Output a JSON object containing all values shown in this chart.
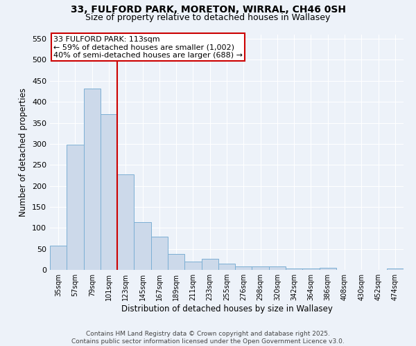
{
  "title1": "33, FULFORD PARK, MORETON, WIRRAL, CH46 0SH",
  "title2": "Size of property relative to detached houses in Wallasey",
  "xlabel": "Distribution of detached houses by size in Wallasey",
  "ylabel": "Number of detached properties",
  "categories": [
    "35sqm",
    "57sqm",
    "79sqm",
    "101sqm",
    "123sqm",
    "145sqm",
    "167sqm",
    "189sqm",
    "211sqm",
    "233sqm",
    "255sqm",
    "276sqm",
    "298sqm",
    "320sqm",
    "342sqm",
    "364sqm",
    "386sqm",
    "408sqm",
    "430sqm",
    "452sqm",
    "474sqm"
  ],
  "values": [
    57,
    298,
    432,
    370,
    228,
    113,
    79,
    38,
    19,
    26,
    15,
    8,
    9,
    8,
    4,
    4,
    5,
    0,
    0,
    0,
    3
  ],
  "bar_color": "#ccd9ea",
  "bar_edge_color": "#7bafd4",
  "red_line_index": 3.5,
  "annotation_line1": "33 FULFORD PARK: 113sqm",
  "annotation_line2": "← 59% of detached houses are smaller (1,002)",
  "annotation_line3": "40% of semi-detached houses are larger (688) →",
  "annotation_box_color": "#ffffff",
  "annotation_box_edge": "#cc0000",
  "red_line_color": "#cc0000",
  "ylim": [
    0,
    560
  ],
  "yticks": [
    0,
    50,
    100,
    150,
    200,
    250,
    300,
    350,
    400,
    450,
    500,
    550
  ],
  "footer1": "Contains HM Land Registry data © Crown copyright and database right 2025.",
  "footer2": "Contains public sector information licensed under the Open Government Licence v3.0.",
  "background_color": "#edf2f9"
}
